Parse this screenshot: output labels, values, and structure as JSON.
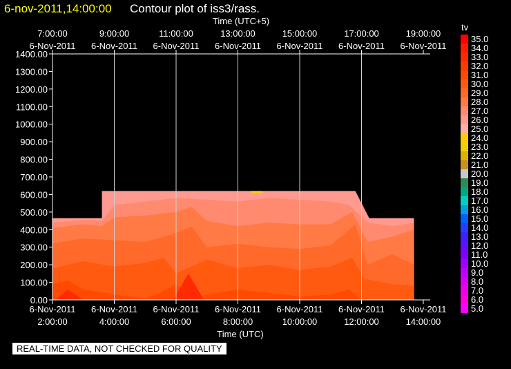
{
  "header": {
    "timestamp": "6-nov-2011,14:00:00",
    "title": "Contour plot of iss3/rass."
  },
  "notice": "REAL-TIME DATA, NOT CHECKED FOR QUALITY",
  "chart_data": {
    "type": "heatmap",
    "title": "Contour plot of iss3/rass.",
    "top_axis_label": "Time (UTC+5)",
    "xlabel": "Time (UTC)",
    "ylabel": "",
    "legend_title": "tv",
    "legend_placement": "right",
    "x_range_hours_utc": [
      2,
      14
    ],
    "ylim": [
      0,
      1400
    ],
    "y_ticks": [
      0,
      100,
      200,
      300,
      400,
      500,
      600,
      700,
      800,
      900,
      1000,
      1100,
      1200,
      1300,
      1400
    ],
    "y_tick_labels": [
      "0.00",
      "100.00",
      "200.00",
      "300.00",
      "400.00",
      "500.00",
      "600.00",
      "700.00",
      "800.00",
      "900.00",
      "1000.00",
      "1100.00",
      "1200.00",
      "1300.00",
      "1400.00"
    ],
    "bottom_ticks": [
      {
        "hour": 2,
        "date": "6-Nov-2011",
        "time": "2:00:00"
      },
      {
        "hour": 4,
        "date": "6-Nov-2011",
        "time": "4:00:00"
      },
      {
        "hour": 6,
        "date": "6-Nov-2011",
        "time": "6:00:00"
      },
      {
        "hour": 8,
        "date": "6-Nov-2011",
        "time": "8:00:00"
      },
      {
        "hour": 10,
        "date": "6-Nov-2011",
        "time": "10:00:00"
      },
      {
        "hour": 12,
        "date": "6-Nov-2011",
        "time": "12:00:00"
      },
      {
        "hour": 14,
        "date": "6-Nov-2011",
        "time": "14:00:00"
      }
    ],
    "top_ticks": [
      {
        "hour": 2,
        "time": "7:00:00",
        "date": "6-Nov-2011"
      },
      {
        "hour": 4,
        "time": "9:00:00",
        "date": "6-Nov-2011"
      },
      {
        "hour": 6,
        "time": "11:00:00",
        "date": "6-Nov-2011"
      },
      {
        "hour": 8,
        "time": "13:00:00",
        "date": "6-Nov-2011"
      },
      {
        "hour": 10,
        "time": "15:00:00",
        "date": "6-Nov-2011"
      },
      {
        "hour": 12,
        "time": "17:00:00",
        "date": "6-Nov-2011"
      },
      {
        "hour": 14,
        "time": "19:00:00",
        "date": "6-Nov-2011"
      }
    ],
    "vertical_grid_hours": [
      4,
      6,
      8,
      10,
      12
    ],
    "legend": [
      {
        "label": "35.0",
        "color": "#ff0000"
      },
      {
        "label": "34.0",
        "color": "#ff1a00"
      },
      {
        "label": "33.0",
        "color": "#ff2a00"
      },
      {
        "label": "32.0",
        "color": "#ff3a00"
      },
      {
        "label": "31.0",
        "color": "#ff4a00"
      },
      {
        "label": "30.0",
        "color": "#ff5a10"
      },
      {
        "label": "29.0",
        "color": "#ff6a2a"
      },
      {
        "label": "28.0",
        "color": "#ff7a45"
      },
      {
        "label": "27.0",
        "color": "#ff8a70"
      },
      {
        "label": "26.0",
        "color": "#ff9a90"
      },
      {
        "label": "25.0",
        "color": "#ffb0a0"
      },
      {
        "label": "24.0",
        "color": "#ffcc00"
      },
      {
        "label": "23.0",
        "color": "#f0d000"
      },
      {
        "label": "22.0",
        "color": "#e0b000"
      },
      {
        "label": "21.0",
        "color": "#c89020"
      },
      {
        "label": "20.0",
        "color": "#c8c8c8"
      },
      {
        "label": "19.0",
        "color": "#2e8b57"
      },
      {
        "label": "18.0",
        "color": "#00a880"
      },
      {
        "label": "17.0",
        "color": "#00d0c0"
      },
      {
        "label": "16.0",
        "color": "#00a0e0"
      },
      {
        "label": "15.0",
        "color": "#0060ff"
      },
      {
        "label": "14.0",
        "color": "#2040ff"
      },
      {
        "label": "13.0",
        "color": "#4020ff"
      },
      {
        "label": "12.0",
        "color": "#6010ff"
      },
      {
        "label": "11.0",
        "color": "#8000ff"
      },
      {
        "label": "10.0",
        "color": "#a000ff"
      },
      {
        "label": "9.0",
        "color": "#c000ff"
      },
      {
        "label": "8.0",
        "color": "#d800f0"
      },
      {
        "label": "7.0",
        "color": "#ec00e8"
      },
      {
        "label": "6.0",
        "color": "#ff00e0"
      },
      {
        "label": "5.0",
        "color": "#ff00ff"
      }
    ],
    "data_outline": [
      {
        "hour": 2.0,
        "top": 465
      },
      {
        "hour": 3.6,
        "top": 465
      },
      {
        "hour": 3.6,
        "top": 620
      },
      {
        "hour": 11.8,
        "top": 620
      },
      {
        "hour": 12.25,
        "top": 465
      },
      {
        "hour": 13.7,
        "top": 465
      }
    ],
    "bands": [
      {
        "temp": 26,
        "color": "#ff9a90",
        "tops": [
          [
            2,
            465
          ],
          [
            3.6,
            465
          ],
          [
            3.6,
            620
          ],
          [
            11.8,
            620
          ],
          [
            12.25,
            465
          ],
          [
            13.7,
            465
          ]
        ]
      },
      {
        "temp": 27,
        "color": "#ff8a70",
        "tops": [
          [
            2,
            440
          ],
          [
            3,
            455
          ],
          [
            3.6,
            450
          ],
          [
            4,
            540
          ],
          [
            5,
            560
          ],
          [
            6,
            580
          ],
          [
            7,
            570
          ],
          [
            8,
            560
          ],
          [
            9,
            580
          ],
          [
            10,
            570
          ],
          [
            11,
            560
          ],
          [
            11.6,
            540
          ],
          [
            12.2,
            440
          ],
          [
            13,
            420
          ],
          [
            13.7,
            440
          ]
        ]
      },
      {
        "temp": 28,
        "color": "#ff7a45",
        "tops": [
          [
            2,
            410
          ],
          [
            3,
            430
          ],
          [
            3.6,
            420
          ],
          [
            4,
            470
          ],
          [
            5,
            480
          ],
          [
            6,
            500
          ],
          [
            6.5,
            530
          ],
          [
            7,
            450
          ],
          [
            8,
            420
          ],
          [
            9,
            440
          ],
          [
            10,
            430
          ],
          [
            11,
            430
          ],
          [
            11.7,
            500
          ],
          [
            12.2,
            330
          ],
          [
            13,
            360
          ],
          [
            13.7,
            400
          ]
        ]
      },
      {
        "temp": 29,
        "color": "#ff6a2a",
        "tops": [
          [
            2,
            320
          ],
          [
            3,
            350
          ],
          [
            4,
            340
          ],
          [
            5,
            330
          ],
          [
            6,
            380
          ],
          [
            6.5,
            420
          ],
          [
            7,
            300
          ],
          [
            8,
            320
          ],
          [
            9,
            300
          ],
          [
            10,
            290
          ],
          [
            11,
            310
          ],
          [
            11.8,
            430
          ],
          [
            12.2,
            200
          ],
          [
            13,
            260
          ],
          [
            13.7,
            200
          ]
        ]
      },
      {
        "temp": 30,
        "color": "#ff5a10",
        "tops": [
          [
            2,
            180
          ],
          [
            3,
            220
          ],
          [
            4,
            190
          ],
          [
            5,
            210
          ],
          [
            5.6,
            240
          ],
          [
            6,
            150
          ],
          [
            7,
            230
          ],
          [
            8,
            180
          ],
          [
            9,
            200
          ],
          [
            10,
            170
          ],
          [
            11,
            190
          ],
          [
            11.7,
            240
          ],
          [
            12.1,
            120
          ],
          [
            13,
            90
          ],
          [
            13.7,
            80
          ]
        ]
      },
      {
        "temp": 31,
        "color": "#ff4a00",
        "tops": [
          [
            2,
            90
          ],
          [
            2.5,
            110
          ],
          [
            3,
            60
          ],
          [
            4,
            30
          ],
          [
            5,
            10
          ],
          [
            5.5,
            40
          ],
          [
            6,
            90
          ],
          [
            6.5,
            10
          ],
          [
            7,
            30
          ],
          [
            8,
            60
          ],
          [
            9,
            40
          ],
          [
            10,
            20
          ],
          [
            11,
            30
          ],
          [
            11.6,
            60
          ],
          [
            12.0,
            0
          ],
          [
            13.7,
            0
          ]
        ]
      }
    ],
    "hot_spots": [
      {
        "temp": 32,
        "color": "#ff2a00",
        "points": [
          [
            5.9,
            0
          ],
          [
            6.4,
            150
          ],
          [
            6.9,
            0
          ]
        ]
      },
      {
        "temp": 32,
        "color": "#ff2a00",
        "points": [
          [
            2.1,
            0
          ],
          [
            2.5,
            60
          ],
          [
            3.0,
            0
          ]
        ]
      }
    ],
    "yellow_fleck": {
      "color": "#ffcc00",
      "hour": 8.6,
      "top": 620
    }
  }
}
